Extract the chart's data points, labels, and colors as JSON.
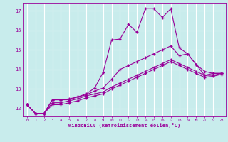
{
  "xlabel": "Windchill (Refroidissement éolien,°C)",
  "bg_color": "#c8ecec",
  "line_color": "#990099",
  "grid_color": "#ffffff",
  "marker": "+",
  "markersize": 3.5,
  "linewidth": 0.8,
  "x_ticks": [
    0,
    1,
    2,
    3,
    4,
    5,
    6,
    7,
    8,
    9,
    10,
    11,
    12,
    13,
    14,
    15,
    16,
    17,
    18,
    19,
    20,
    21,
    22,
    23
  ],
  "y_ticks": [
    12,
    13,
    14,
    15,
    16,
    17
  ],
  "xlim": [
    -0.5,
    23.5
  ],
  "ylim": [
    11.6,
    17.4
  ],
  "series": [
    [
      12.2,
      11.75,
      11.75,
      12.45,
      12.45,
      12.45,
      12.6,
      12.75,
      13.05,
      13.85,
      15.5,
      15.55,
      16.3,
      15.9,
      17.1,
      17.1,
      16.65,
      17.1,
      15.1,
      14.8,
      14.25,
      13.7,
      13.8,
      13.8
    ],
    [
      12.2,
      11.75,
      11.75,
      12.45,
      12.45,
      12.5,
      12.6,
      12.7,
      12.9,
      13.05,
      13.5,
      14.0,
      14.2,
      14.4,
      14.6,
      14.8,
      15.0,
      15.2,
      14.7,
      14.8,
      14.25,
      13.9,
      13.8,
      13.8
    ],
    [
      12.2,
      11.75,
      11.75,
      12.3,
      12.3,
      12.4,
      12.5,
      12.65,
      12.75,
      12.85,
      13.1,
      13.3,
      13.5,
      13.7,
      13.9,
      14.1,
      14.3,
      14.5,
      14.3,
      14.1,
      13.9,
      13.7,
      13.7,
      13.8
    ],
    [
      12.2,
      11.75,
      11.75,
      12.2,
      12.2,
      12.3,
      12.4,
      12.55,
      12.65,
      12.75,
      13.0,
      13.2,
      13.4,
      13.6,
      13.8,
      14.0,
      14.2,
      14.4,
      14.2,
      14.0,
      13.8,
      13.6,
      13.65,
      13.75
    ]
  ]
}
